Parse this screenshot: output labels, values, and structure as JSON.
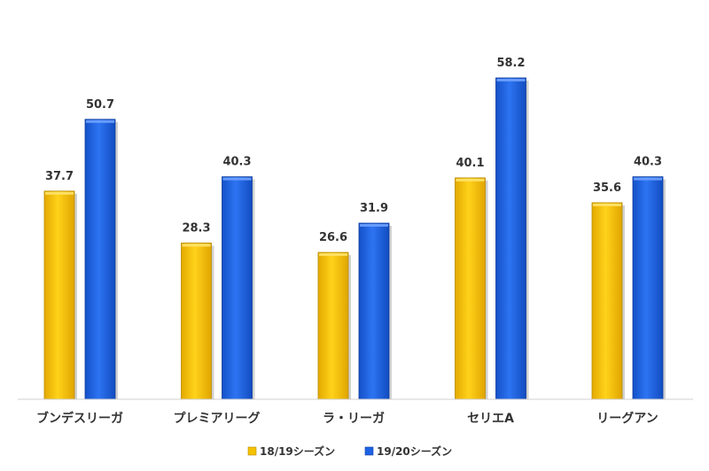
{
  "chart_data": {
    "type": "bar",
    "title": "",
    "xlabel": "",
    "ylabel": "",
    "categories": [
      "ブンデスリーガ",
      "プレミアリーグ",
      "ラ・リーガ",
      "セリエA",
      "リーグアン"
    ],
    "series": [
      {
        "name": "18/19シーズン",
        "values": [
          37.7,
          28.3,
          26.6,
          40.1,
          35.6
        ],
        "color": "#F5C200"
      },
      {
        "name": "19/20シーズン",
        "values": [
          50.7,
          40.3,
          31.9,
          58.2,
          40.3
        ],
        "color": "#1E63E6"
      }
    ],
    "ylim": [
      0,
      65
    ],
    "grid": false,
    "legend": "bottom",
    "data_labels": true
  }
}
